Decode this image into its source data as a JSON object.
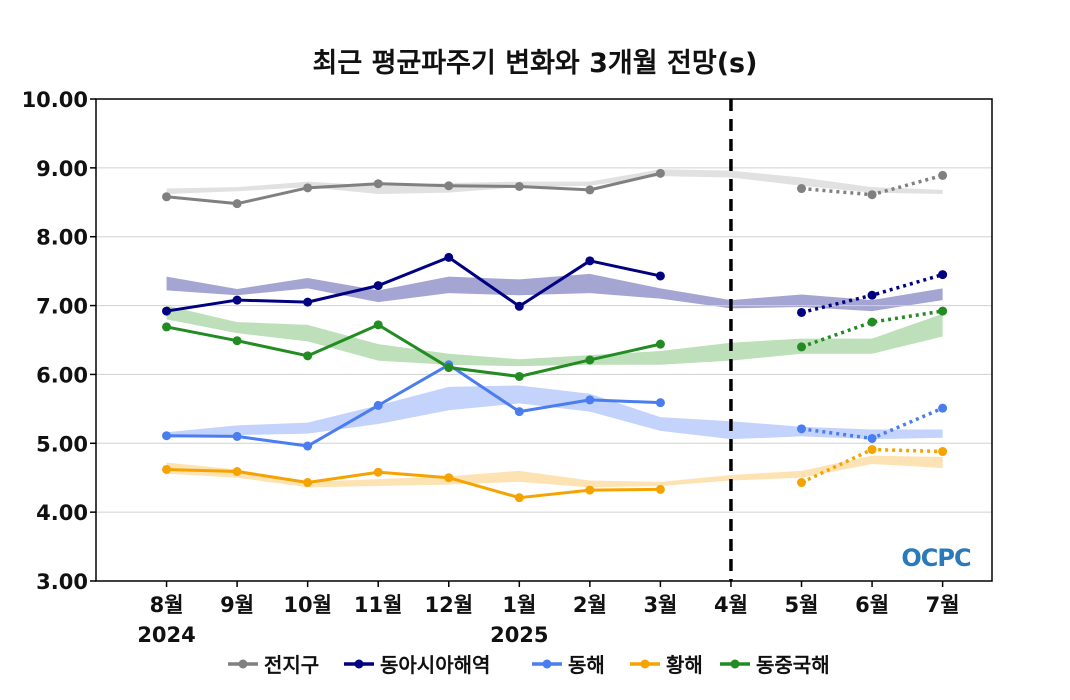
{
  "chart_data": {
    "type": "line",
    "title": "최근 평균파주기 변화와 3개월 전망(s)",
    "ylim": [
      3.0,
      10.0
    ],
    "yticks": [
      "3.00",
      "4.00",
      "5.00",
      "6.00",
      "7.00",
      "8.00",
      "9.00",
      "10.00"
    ],
    "categories": [
      "8월",
      "9월",
      "10월",
      "11월",
      "12월",
      "1월",
      "2월",
      "3월",
      "4월",
      "5월",
      "6월",
      "7월"
    ],
    "year_labels": [
      {
        "index": 0,
        "text": "2024"
      },
      {
        "index": 5,
        "text": "2025"
      }
    ],
    "forecast_divider_index": 8,
    "watermark": "OCPC",
    "legend_position": "bottom",
    "series": [
      {
        "name": "전지구",
        "color": "#808080",
        "band_color": "#d9d9d9",
        "observed": [
          8.58,
          8.48,
          8.71,
          8.77,
          8.74,
          8.73,
          8.68,
          8.92
        ],
        "forecast": [
          null,
          null,
          null,
          null,
          null,
          null,
          null,
          null,
          null,
          8.7,
          8.61,
          8.89
        ],
        "band_low": [
          8.62,
          8.66,
          8.72,
          8.62,
          8.64,
          8.72,
          8.74,
          8.88,
          8.86,
          8.74,
          8.64,
          8.62
        ],
        "band_high": [
          8.7,
          8.72,
          8.8,
          8.74,
          8.78,
          8.8,
          8.8,
          8.98,
          8.96,
          8.86,
          8.72,
          8.68
        ]
      },
      {
        "name": "동아시아해역",
        "color": "#000080",
        "band_color": "#8f8fc8",
        "observed": [
          6.92,
          7.08,
          7.05,
          7.29,
          7.7,
          6.99,
          7.65,
          7.43
        ],
        "forecast": [
          null,
          null,
          null,
          null,
          null,
          null,
          null,
          null,
          null,
          6.9,
          7.15,
          7.45
        ],
        "band_low": [
          7.22,
          7.15,
          7.25,
          7.05,
          7.18,
          7.15,
          7.18,
          7.1,
          6.96,
          6.98,
          6.92,
          7.08
        ],
        "band_high": [
          7.42,
          7.24,
          7.4,
          7.22,
          7.42,
          7.38,
          7.46,
          7.25,
          7.08,
          7.16,
          7.08,
          7.25
        ]
      },
      {
        "name": "동해",
        "color": "#4a7df0",
        "band_color": "#b5c8fb",
        "observed": [
          5.11,
          5.1,
          4.96,
          5.55,
          6.14,
          5.46,
          5.63,
          5.59
        ],
        "forecast": [
          null,
          null,
          null,
          null,
          null,
          null,
          null,
          null,
          null,
          5.21,
          5.07,
          5.51
        ],
        "band_low": [
          5.08,
          5.12,
          5.14,
          5.28,
          5.48,
          5.58,
          5.46,
          5.18,
          5.06,
          5.1,
          5.06,
          5.08
        ],
        "band_high": [
          5.16,
          5.26,
          5.3,
          5.55,
          5.82,
          5.84,
          5.72,
          5.38,
          5.32,
          5.24,
          5.2,
          5.2
        ]
      },
      {
        "name": "황해",
        "color": "#f5a300",
        "band_color": "#fcdca0",
        "observed": [
          4.62,
          4.59,
          4.43,
          4.58,
          4.5,
          4.21,
          4.32,
          4.33
        ],
        "forecast": [
          null,
          null,
          null,
          null,
          null,
          null,
          null,
          null,
          null,
          4.43,
          4.91,
          4.88
        ],
        "band_low": [
          4.56,
          4.5,
          4.36,
          4.38,
          4.4,
          4.44,
          4.36,
          4.38,
          4.46,
          4.5,
          4.7,
          4.64
        ],
        "band_high": [
          4.72,
          4.62,
          4.44,
          4.48,
          4.52,
          4.6,
          4.46,
          4.44,
          4.54,
          4.6,
          4.82,
          4.8
        ]
      },
      {
        "name": "동중국해",
        "color": "#228b22",
        "band_color": "#add7a8",
        "observed": [
          6.69,
          6.49,
          6.27,
          6.72,
          6.1,
          5.97,
          6.21,
          6.44
        ],
        "forecast": [
          null,
          null,
          null,
          null,
          null,
          null,
          null,
          null,
          null,
          6.4,
          6.76,
          6.92
        ],
        "band_low": [
          6.8,
          6.6,
          6.48,
          6.2,
          6.14,
          6.12,
          6.14,
          6.14,
          6.2,
          6.3,
          6.3,
          6.55
        ],
        "band_high": [
          7.0,
          6.76,
          6.72,
          6.44,
          6.3,
          6.22,
          6.28,
          6.34,
          6.46,
          6.52,
          6.52,
          6.88
        ]
      }
    ]
  }
}
